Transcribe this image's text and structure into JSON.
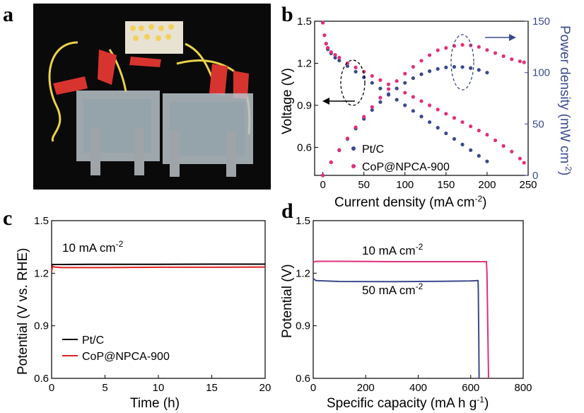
{
  "panels": {
    "a": {
      "letter": "a"
    },
    "b": {
      "letter": "b"
    },
    "c": {
      "letter": "c"
    },
    "d": {
      "letter": "d"
    }
  },
  "photo": {
    "description_hidden": true,
    "colors": {
      "background": "#0a0a0a",
      "clip": "#d8342f",
      "led": "#f4d05a",
      "wire": "#e8d24a",
      "cell": "#b9c3c9",
      "bolt": "#9ea4a8"
    }
  },
  "chart_data": [
    {
      "id": "b",
      "type": "scatter",
      "xlabel": "Current density (mA cm",
      "xlabel_sup": "-2",
      "xlabel_end": ")",
      "ylabel": "Voltage (V)",
      "y2label": "Power density (mW cm",
      "y2label_sup": "-2",
      "y2label_end": ")",
      "xlim": [
        -10,
        250
      ],
      "ylim": [
        0.4,
        1.5
      ],
      "y2lim": [
        0,
        150
      ],
      "xticks": [
        0,
        50,
        100,
        150,
        200,
        250
      ],
      "yticks": [
        0.6,
        0.9,
        1.2,
        1.5
      ],
      "y2ticks": [
        0,
        50,
        100,
        150
      ],
      "series": [
        {
          "name": "Pt/C",
          "color": "#3b4a8c",
          "kind": "voltage",
          "x": [
            0,
            2,
            4,
            6,
            10,
            15,
            20,
            30,
            40,
            50,
            60,
            70,
            80,
            90,
            100,
            110,
            120,
            130,
            140,
            150,
            160,
            170,
            180,
            190,
            200
          ],
          "y": [
            1.49,
            1.4,
            1.34,
            1.3,
            1.27,
            1.24,
            1.22,
            1.18,
            1.14,
            1.1,
            1.06,
            1.02,
            0.98,
            0.94,
            0.9,
            0.86,
            0.82,
            0.78,
            0.74,
            0.7,
            0.66,
            0.62,
            0.58,
            0.54,
            0.5
          ]
        },
        {
          "name": "CoP@NPCA-900",
          "color": "#e0307a",
          "kind": "voltage",
          "x": [
            0,
            2,
            4,
            6,
            10,
            15,
            20,
            30,
            40,
            50,
            60,
            70,
            80,
            90,
            100,
            110,
            120,
            130,
            140,
            150,
            160,
            170,
            180,
            190,
            200,
            210,
            220,
            230,
            240,
            245
          ],
          "y": [
            1.49,
            1.4,
            1.34,
            1.31,
            1.28,
            1.26,
            1.24,
            1.2,
            1.17,
            1.14,
            1.11,
            1.08,
            1.05,
            1.02,
            0.99,
            0.96,
            0.93,
            0.9,
            0.87,
            0.84,
            0.81,
            0.78,
            0.75,
            0.72,
            0.69,
            0.65,
            0.61,
            0.57,
            0.52,
            0.49
          ]
        },
        {
          "name": "Pt/C",
          "color": "#3b4a8c",
          "kind": "power",
          "x": [
            0,
            10,
            20,
            30,
            40,
            50,
            60,
            70,
            80,
            90,
            100,
            110,
            120,
            130,
            140,
            150,
            160,
            170,
            180,
            190,
            200
          ],
          "y": [
            0,
            12.7,
            24.4,
            35.4,
            45.6,
            55.0,
            63.6,
            71.4,
            78.4,
            84.6,
            90.0,
            94.6,
            98.4,
            101.4,
            103.6,
            105.0,
            105.6,
            105.4,
            104.4,
            102.6,
            100.0
          ]
        },
        {
          "name": "CoP@NPCA-900",
          "color": "#e0307a",
          "kind": "power",
          "x": [
            0,
            10,
            20,
            30,
            40,
            50,
            60,
            70,
            80,
            90,
            100,
            110,
            120,
            130,
            140,
            150,
            160,
            170,
            180,
            190,
            200,
            210,
            220,
            230,
            240,
            245
          ],
          "y": [
            0,
            12.8,
            24.8,
            36.0,
            46.8,
            57.0,
            66.6,
            75.6,
            84.0,
            91.8,
            99.0,
            105.6,
            111.6,
            117.0,
            121.8,
            124.0,
            126.0,
            127.0,
            126.5,
            125.0,
            122.0,
            119.0,
            116.0,
            113.0,
            111.0,
            110.0
          ]
        }
      ],
      "legend": [
        {
          "label": "Pt/C",
          "color": "#3b4a8c"
        },
        {
          "label": "CoP@NPCA-900",
          "color": "#e0307a"
        }
      ]
    },
    {
      "id": "c",
      "type": "line",
      "xlabel": "Time (h)",
      "ylabel": "Potential (V vs. RHE)",
      "xlim": [
        0,
        20
      ],
      "ylim": [
        0.6,
        1.5
      ],
      "xticks": [
        0,
        5,
        10,
        15,
        20
      ],
      "yticks": [
        0.6,
        0.9,
        1.2,
        1.5
      ],
      "annotation": "10 mA cm",
      "annotation_sup": "-2",
      "series": [
        {
          "name": "Pt/C",
          "color": "#000000",
          "x": [
            0,
            0.1,
            0.3,
            1,
            5,
            10,
            15,
            20
          ],
          "y": [
            1.247,
            1.25,
            1.25,
            1.25,
            1.251,
            1.251,
            1.252,
            1.252
          ]
        },
        {
          "name": "CoP@NPCA-900",
          "color": "#e02020",
          "x": [
            0,
            0.1,
            0.3,
            1,
            5,
            10,
            15,
            20
          ],
          "y": [
            1.21,
            1.24,
            1.235,
            1.232,
            1.232,
            1.234,
            1.234,
            1.235
          ]
        }
      ],
      "legend": [
        {
          "label": "Pt/C",
          "color": "#000000"
        },
        {
          "label": "CoP@NPCA-900",
          "color": "#e02020"
        }
      ]
    },
    {
      "id": "d",
      "type": "line",
      "xlabel": "Specific capacity (mA h g",
      "xlabel_sup": "-1",
      "xlabel_end": ")",
      "ylabel": "Potential (V)",
      "xlim": [
        0,
        800
      ],
      "ylim": [
        0.6,
        1.5
      ],
      "xticks": [
        0,
        200,
        400,
        600,
        800
      ],
      "yticks": [
        0.6,
        0.9,
        1.2,
        1.5
      ],
      "annotations": [
        {
          "text": "10 mA cm",
          "sup": "-2"
        },
        {
          "text": "50 mA cm",
          "sup": "-2"
        }
      ],
      "series": [
        {
          "name": "10 mA cm-2",
          "color": "#e0307a",
          "x": [
            0,
            10,
            100,
            300,
            500,
            600,
            660,
            662,
            664,
            666,
            668
          ],
          "y": [
            1.262,
            1.268,
            1.268,
            1.266,
            1.266,
            1.266,
            1.266,
            1.2,
            1.0,
            0.8,
            0.6
          ]
        },
        {
          "name": "50 mA cm-2",
          "color": "#3b4a8c",
          "x": [
            0,
            10,
            100,
            300,
            500,
            600,
            628,
            629,
            630,
            631,
            632
          ],
          "y": [
            1.17,
            1.158,
            1.153,
            1.152,
            1.154,
            1.156,
            1.158,
            1.1,
            0.95,
            0.8,
            0.6
          ]
        }
      ]
    }
  ]
}
